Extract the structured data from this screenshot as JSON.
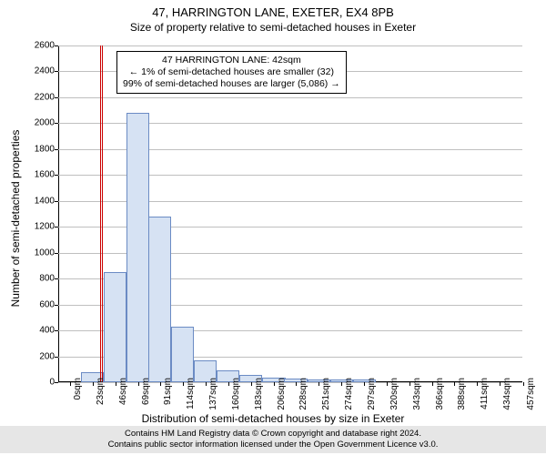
{
  "title": "47, HARRINGTON LANE, EXETER, EX4 8PB",
  "subtitle": "Size of property relative to semi-detached houses in Exeter",
  "ylabel": "Number of semi-detached properties",
  "xlabel": "Distribution of semi-detached houses by size in Exeter",
  "footer_line1": "Contains HM Land Registry data © Crown copyright and database right 2024.",
  "footer_line2": "Contains public sector information licensed under the Open Government Licence v3.0.",
  "chart": {
    "type": "histogram",
    "ylim": [
      0,
      2600
    ],
    "ytick_step": 200,
    "grid_color": "#bfbfbf",
    "background_color": "#ffffff",
    "bar_fill": "#d6e2f3",
    "bar_border": "#6b8bc4",
    "ref_line_color": "#cc0000",
    "ref_line_x": 42,
    "ref_line_x2": 44,
    "x_min": 0,
    "x_max": 468,
    "bin_width": 23,
    "bins": [
      {
        "start": 0,
        "count": 0
      },
      {
        "start": 23,
        "count": 80
      },
      {
        "start": 46,
        "count": 850
      },
      {
        "start": 69,
        "count": 2080
      },
      {
        "start": 91,
        "count": 1280
      },
      {
        "start": 114,
        "count": 430
      },
      {
        "start": 137,
        "count": 170
      },
      {
        "start": 160,
        "count": 90
      },
      {
        "start": 183,
        "count": 55
      },
      {
        "start": 206,
        "count": 35
      },
      {
        "start": 228,
        "count": 30
      },
      {
        "start": 251,
        "count": 20
      },
      {
        "start": 274,
        "count": 18
      },
      {
        "start": 297,
        "count": 22
      },
      {
        "start": 320,
        "count": 0
      },
      {
        "start": 343,
        "count": 0
      },
      {
        "start": 366,
        "count": 0
      },
      {
        "start": 388,
        "count": 0
      },
      {
        "start": 411,
        "count": 0
      },
      {
        "start": 434,
        "count": 0
      },
      {
        "start": 457,
        "count": 0
      }
    ],
    "x_tick_labels": [
      "0sqm",
      "23sqm",
      "46sqm",
      "69sqm",
      "91sqm",
      "114sqm",
      "137sqm",
      "160sqm",
      "183sqm",
      "206sqm",
      "228sqm",
      "251sqm",
      "274sqm",
      "297sqm",
      "320sqm",
      "343sqm",
      "366sqm",
      "388sqm",
      "411sqm",
      "434sqm",
      "457sqm"
    ]
  },
  "infobox": {
    "line1": "47 HARRINGTON LANE: 42sqm",
    "line2": "← 1% of semi-detached houses are smaller (32)",
    "line3": "99% of semi-detached houses are larger (5,086) →"
  }
}
